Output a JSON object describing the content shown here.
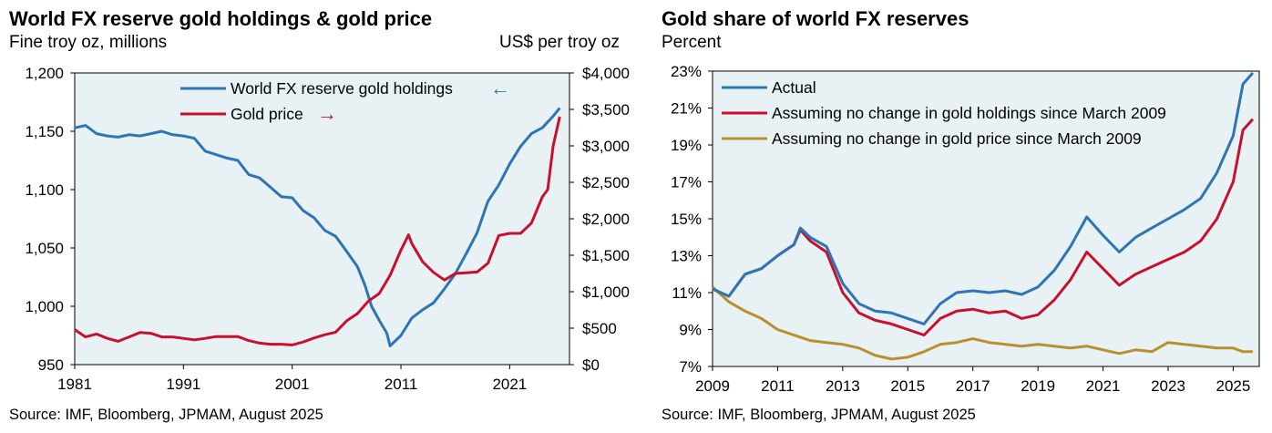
{
  "left_panel": {
    "title": "World FX reserve gold holdings & gold price",
    "left_unit": "Fine troy oz, millions",
    "right_unit": "US$ per troy oz",
    "source": "Source: IMF, Bloomberg, JPMAM, August 2025"
  },
  "right_panel": {
    "title": "Gold share of world FX reserves",
    "unit": "Percent",
    "source": "Source: IMF, Bloomberg, JPMAM, August 2025"
  },
  "colors": {
    "blue": "#2e75b6",
    "red": "#c8102e",
    "gold": "#b8902e",
    "plot_bg": "#e8f1f4"
  },
  "chart_data": [
    {
      "type": "line",
      "title": "World FX reserve gold holdings & gold price",
      "xlabel": "",
      "ylabel": "Fine troy oz, millions",
      "y2label": "US$ per troy oz",
      "x_ticks": [
        "1981",
        "1991",
        "2001",
        "2011",
        "2021"
      ],
      "xlim": [
        1981,
        2026.5
      ],
      "ylim": [
        950,
        1200
      ],
      "y_ticks": [
        "1,200",
        "1,150",
        "1,100",
        "1,050",
        "1,000",
        "950"
      ],
      "y2lim": [
        0,
        4000
      ],
      "y2_ticks": [
        "$4,000",
        "$3,500",
        "$3,000",
        "$2,500",
        "$2,000",
        "$1,500",
        "$1,000",
        "$500",
        "$0"
      ],
      "legend_position": "top-center",
      "grid": false,
      "series": [
        {
          "name": "World FX reserve gold holdings",
          "axis": "left",
          "legend_arrow": "←",
          "x": [
            1981,
            1982,
            1983,
            1984,
            1985,
            1986,
            1987,
            1988,
            1989,
            1990,
            1991,
            1992,
            1993,
            1994,
            1995,
            1996,
            1997,
            1998,
            1999,
            2000,
            2001,
            2002,
            2003,
            2004,
            2005,
            2006,
            2007,
            2007.7,
            2008.3,
            2009,
            2009.7,
            2010,
            2011,
            2012,
            2013,
            2014,
            2015,
            2016,
            2017,
            2018,
            2019,
            2020,
            2021,
            2022,
            2023,
            2024,
            2025,
            2025.6
          ],
          "values": [
            1153,
            1155,
            1148,
            1146,
            1145,
            1147,
            1146,
            1148,
            1150,
            1147,
            1146,
            1144,
            1133,
            1130,
            1127,
            1125,
            1113,
            1110,
            1102,
            1094,
            1093,
            1082,
            1076,
            1065,
            1060,
            1047,
            1034,
            1018,
            1000,
            988,
            977,
            966,
            975,
            990,
            997,
            1003,
            1015,
            1028,
            1045,
            1063,
            1090,
            1104,
            1122,
            1137,
            1148,
            1153,
            1163,
            1170
          ]
        },
        {
          "name": "Gold price",
          "axis": "right",
          "legend_arrow": "→",
          "x": [
            1981,
            1982,
            1983,
            1984,
            1985,
            1986,
            1987,
            1988,
            1989,
            1990,
            1991,
            1992,
            1993,
            1994,
            1995,
            1996,
            1997,
            1998,
            1999,
            2000,
            2001,
            2002,
            2003,
            2004,
            2005,
            2006,
            2007,
            2008,
            2009,
            2010,
            2011,
            2011.7,
            2012,
            2013,
            2014,
            2015,
            2016,
            2017,
            2018,
            2019,
            2020,
            2021,
            2022,
            2023,
            2024,
            2024.5,
            2025,
            2025.6
          ],
          "values": [
            480,
            380,
            420,
            360,
            320,
            380,
            440,
            430,
            380,
            380,
            360,
            340,
            360,
            385,
            385,
            385,
            330,
            295,
            280,
            280,
            270,
            310,
            365,
            410,
            445,
            600,
            700,
            870,
            975,
            1225,
            1570,
            1780,
            1660,
            1410,
            1265,
            1160,
            1250,
            1260,
            1270,
            1390,
            1770,
            1800,
            1800,
            1940,
            2300,
            2400,
            3000,
            3400
          ]
        }
      ]
    },
    {
      "type": "line",
      "title": "Gold share of world FX reserves",
      "xlabel": "",
      "ylabel": "Percent",
      "x_ticks": [
        "2009",
        "2011",
        "2013",
        "2015",
        "2017",
        "2019",
        "2021",
        "2023",
        "2025"
      ],
      "xlim": [
        2009,
        2025.8
      ],
      "ylim": [
        7,
        23
      ],
      "y_ticks": [
        "23%",
        "21%",
        "19%",
        "17%",
        "15%",
        "13%",
        "11%",
        "9%",
        "7%"
      ],
      "legend_position": "top-left",
      "grid": false,
      "series": [
        {
          "name": "Actual",
          "x": [
            2009,
            2009.5,
            2010,
            2010.5,
            2011,
            2011.5,
            2011.7,
            2012,
            2012.5,
            2013,
            2013.5,
            2014,
            2014.5,
            2015,
            2015.5,
            2016,
            2016.5,
            2017,
            2017.5,
            2018,
            2018.5,
            2019,
            2019.5,
            2020,
            2020.5,
            2021,
            2021.5,
            2022,
            2022.5,
            2023,
            2023.5,
            2024,
            2024.5,
            2025,
            2025.3,
            2025.6
          ],
          "values": [
            11.2,
            10.8,
            12.0,
            12.3,
            13.0,
            13.6,
            14.5,
            14.0,
            13.5,
            11.5,
            10.4,
            10.0,
            9.9,
            9.6,
            9.3,
            10.4,
            11.0,
            11.1,
            11.0,
            11.1,
            10.9,
            11.3,
            12.2,
            13.5,
            15.1,
            14.1,
            13.2,
            14.0,
            14.5,
            15.0,
            15.5,
            16.1,
            17.5,
            19.5,
            22.3,
            22.9
          ]
        },
        {
          "name": "Assuming no change in gold holdings since March 2009",
          "x": [
            2009,
            2009.5,
            2010,
            2010.5,
            2011,
            2011.5,
            2011.7,
            2012,
            2012.5,
            2013,
            2013.5,
            2014,
            2014.5,
            2015,
            2015.5,
            2016,
            2016.5,
            2017,
            2017.5,
            2018,
            2018.5,
            2019,
            2019.5,
            2020,
            2020.5,
            2021,
            2021.5,
            2022,
            2022.5,
            2023,
            2023.5,
            2024,
            2024.5,
            2025,
            2025.3,
            2025.6
          ],
          "values": [
            11.2,
            10.8,
            12.0,
            12.3,
            13.0,
            13.6,
            14.4,
            13.8,
            13.2,
            11.0,
            9.9,
            9.5,
            9.3,
            9.0,
            8.7,
            9.6,
            10.0,
            10.1,
            9.9,
            10.0,
            9.6,
            9.8,
            10.6,
            11.7,
            13.2,
            12.3,
            11.4,
            12.0,
            12.4,
            12.8,
            13.2,
            13.8,
            15.0,
            17.0,
            19.8,
            20.4
          ]
        },
        {
          "name": "Assuming no change in gold price since March 2009",
          "x": [
            2009,
            2009.5,
            2010,
            2010.5,
            2011,
            2011.5,
            2012,
            2012.5,
            2013,
            2013.5,
            2014,
            2014.5,
            2015,
            2015.5,
            2016,
            2016.5,
            2017,
            2017.5,
            2018,
            2018.5,
            2019,
            2019.5,
            2020,
            2020.5,
            2021,
            2021.5,
            2022,
            2022.5,
            2023,
            2023.5,
            2024,
            2024.5,
            2025,
            2025.3,
            2025.6
          ],
          "values": [
            11.3,
            10.5,
            10.0,
            9.6,
            9.0,
            8.7,
            8.4,
            8.3,
            8.2,
            8.0,
            7.6,
            7.4,
            7.5,
            7.8,
            8.2,
            8.3,
            8.5,
            8.3,
            8.2,
            8.1,
            8.2,
            8.1,
            8.0,
            8.1,
            7.9,
            7.7,
            7.9,
            7.8,
            8.3,
            8.2,
            8.1,
            8.0,
            8.0,
            7.8,
            7.8
          ]
        }
      ]
    }
  ]
}
